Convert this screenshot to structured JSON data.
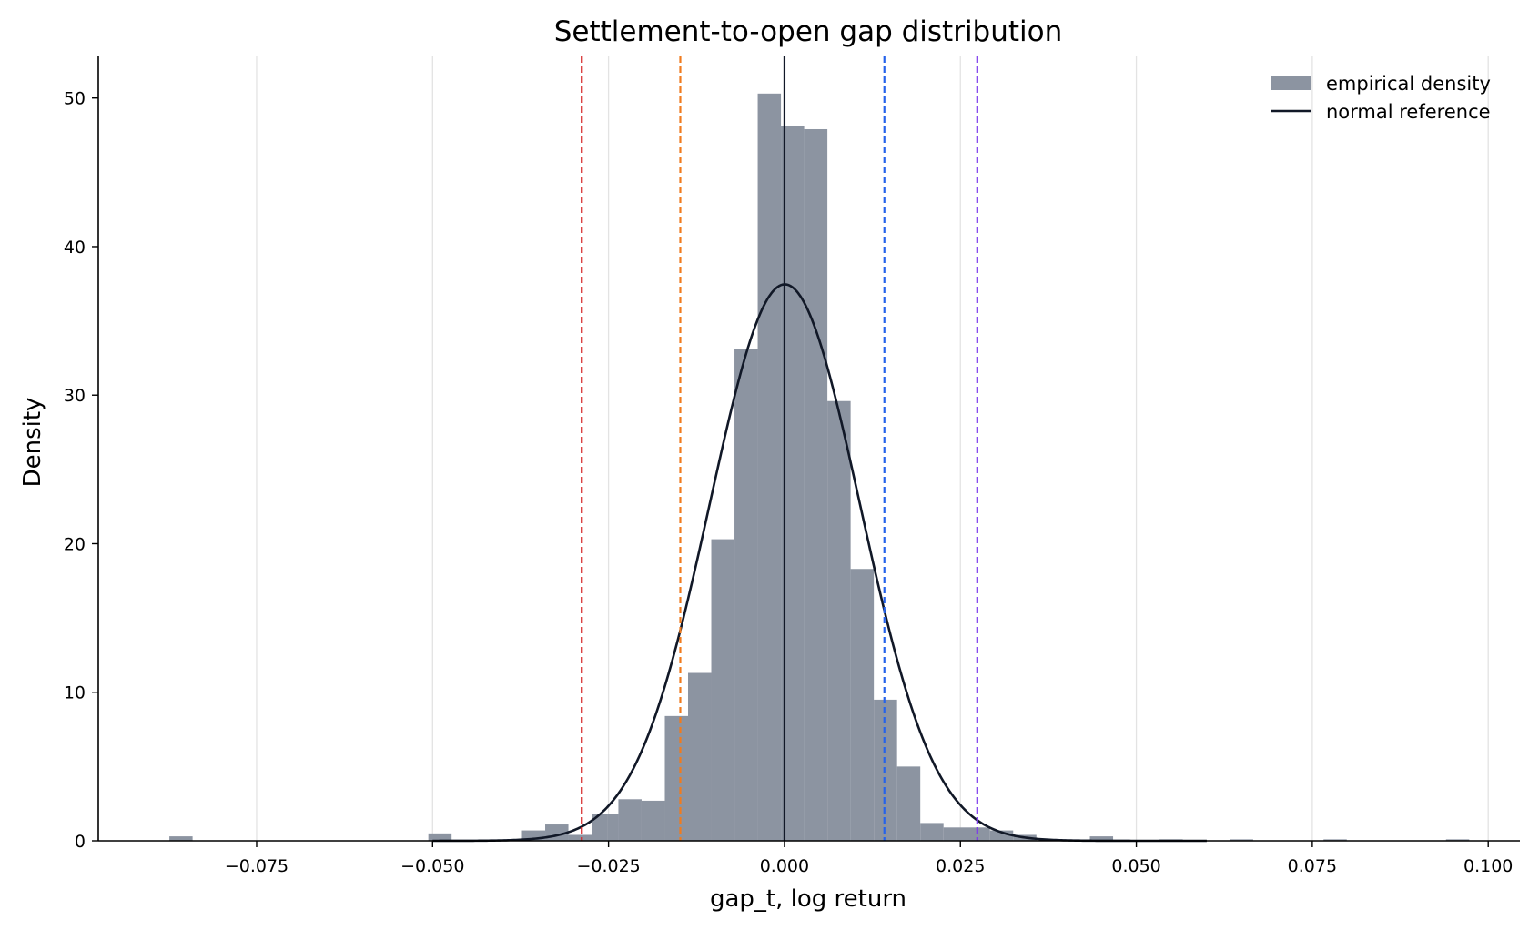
{
  "chart_data": {
    "type": "bar",
    "title": "Settlement-to-open gap distribution",
    "xlabel": "gap_t, log return",
    "ylabel": "Density",
    "xlim": [
      -0.0975,
      0.1045
    ],
    "ylim": [
      0,
      52.8
    ],
    "xticks": [
      -0.075,
      -0.05,
      -0.025,
      0.0,
      0.025,
      0.05,
      0.075,
      0.1
    ],
    "xtick_labels": [
      "−0.075",
      "−0.050",
      "−0.025",
      "0.000",
      "0.025",
      "0.050",
      "0.075",
      "0.100"
    ],
    "yticks": [
      0,
      10,
      20,
      30,
      40,
      50
    ],
    "ytick_labels": [
      "0",
      "10",
      "20",
      "30",
      "40",
      "50"
    ],
    "grid": {
      "x": true,
      "y": false
    },
    "legend": {
      "position": "top-right",
      "entries": [
        {
          "label": "empirical density",
          "kind": "patch",
          "color": "#8c94a1"
        },
        {
          "label": "normal reference",
          "kind": "line",
          "color": "#111827"
        }
      ]
    },
    "series": [
      {
        "name": "empirical density",
        "kind": "histogram",
        "color": "#8c94a1",
        "bins": [
          {
            "x0": -0.0874,
            "x1": -0.0841,
            "y": 0.3
          },
          {
            "x0": -0.0506,
            "x1": -0.0473,
            "y": 0.5
          },
          {
            "x0": -0.0373,
            "x1": -0.034,
            "y": 0.7
          },
          {
            "x0": -0.034,
            "x1": -0.0307,
            "y": 1.1
          },
          {
            "x0": -0.0307,
            "x1": -0.0274,
            "y": 0.4
          },
          {
            "x0": -0.0274,
            "x1": -0.0252,
            "y": 1.8
          },
          {
            "x0": -0.0252,
            "x1": -0.0236,
            "y": 1.8
          },
          {
            "x0": -0.0236,
            "x1": -0.0203,
            "y": 2.8
          },
          {
            "x0": -0.0203,
            "x1": -0.017,
            "y": 2.7
          },
          {
            "x0": -0.017,
            "x1": -0.0137,
            "y": 8.4
          },
          {
            "x0": -0.0137,
            "x1": -0.0104,
            "y": 11.3
          },
          {
            "x0": -0.0104,
            "x1": -0.0071,
            "y": 20.3
          },
          {
            "x0": -0.0071,
            "x1": -0.0038,
            "y": 33.1
          },
          {
            "x0": -0.0038,
            "x1": -0.0005,
            "y": 50.3
          },
          {
            "x0": -0.0005,
            "x1": 0.0028,
            "y": 48.1
          },
          {
            "x0": 0.0028,
            "x1": 0.0061,
            "y": 47.9
          },
          {
            "x0": 0.0061,
            "x1": 0.0094,
            "y": 29.6
          },
          {
            "x0": 0.0094,
            "x1": 0.0127,
            "y": 18.3
          },
          {
            "x0": 0.0127,
            "x1": 0.016,
            "y": 9.5
          },
          {
            "x0": 0.016,
            "x1": 0.0193,
            "y": 5.0
          },
          {
            "x0": 0.0193,
            "x1": 0.0226,
            "y": 1.2
          },
          {
            "x0": 0.0226,
            "x1": 0.0259,
            "y": 0.9
          },
          {
            "x0": 0.0259,
            "x1": 0.0292,
            "y": 0.9
          },
          {
            "x0": 0.0292,
            "x1": 0.0325,
            "y": 0.7
          },
          {
            "x0": 0.0325,
            "x1": 0.0358,
            "y": 0.4
          },
          {
            "x0": 0.0434,
            "x1": 0.0467,
            "y": 0.3
          },
          {
            "x0": 0.0533,
            "x1": 0.0566,
            "y": 0.1
          },
          {
            "x0": 0.0633,
            "x1": 0.0666,
            "y": 0.1
          },
          {
            "x0": 0.0766,
            "x1": 0.0799,
            "y": 0.1
          },
          {
            "x0": 0.094,
            "x1": 0.0973,
            "y": 0.1
          }
        ]
      },
      {
        "name": "normal reference",
        "kind": "normal_pdf",
        "color": "#111827",
        "mean": 5e-05,
        "std": 0.01065,
        "x_range": [
          -0.05,
          0.06
        ]
      }
    ],
    "reference_lines": [
      {
        "x": -0.0288,
        "color": "#d62728",
        "style": "dashed"
      },
      {
        "x": -0.0148,
        "color": "#f07b1e",
        "style": "dashed"
      },
      {
        "x": 0.0,
        "color": "#111827",
        "style": "solid"
      },
      {
        "x": 0.0142,
        "color": "#2563eb",
        "style": "dashed"
      },
      {
        "x": 0.0274,
        "color": "#7c3aed",
        "style": "dashed"
      }
    ]
  }
}
